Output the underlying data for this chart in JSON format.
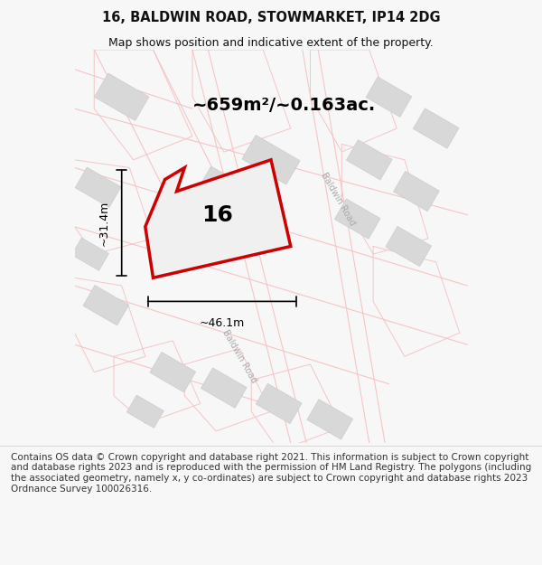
{
  "title_line1": "16, BALDWIN ROAD, STOWMARKET, IP14 2DG",
  "title_line2": "Map shows position and indicative extent of the property.",
  "area_text": "~659m²/~0.163ac.",
  "label_number": "16",
  "dim_width": "~46.1m",
  "dim_height": "~31.4m",
  "footer_text": "Contains OS data © Crown copyright and database right 2021. This information is subject to Crown copyright and database rights 2023 and is reproduced with the permission of HM Land Registry. The polygons (including the associated geometry, namely x, y co-ordinates) are subject to Crown copyright and database rights 2023 Ordnance Survey 100026316.",
  "bg_color": "#f7f7f7",
  "map_bg": "#ffffff",
  "road_color": "#f5c5c5",
  "building_fill": "#d8d8d8",
  "building_edge": "#cccccc",
  "highlight_fill": "#f0f0f0",
  "highlight_edge": "#cc0000",
  "street_label_color": "#aaaaaa",
  "title_color": "#111111",
  "annotation_color": "#111111"
}
